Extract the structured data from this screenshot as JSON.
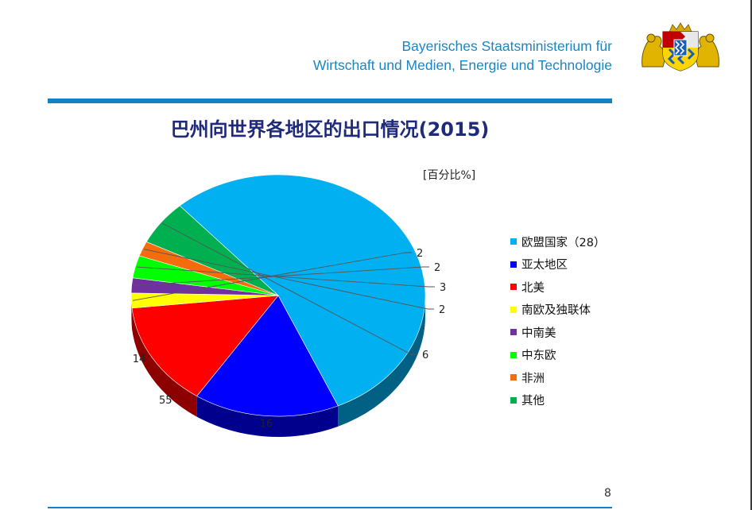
{
  "header": {
    "line1": "Bayerisches Staatsministerium für",
    "line2": "Wirtschaft und Medien, Energie und Technologie"
  },
  "title": "巴州向世界各地区的出口情况(2015)",
  "page_number": "8",
  "chart_data": {
    "type": "pie",
    "title": "巴州向世界各地区的出口情况(2015)",
    "unit": "[百分比%]",
    "legend_position": "right",
    "categories": [
      "欧盟国家（28）",
      "亚太地区",
      "北美",
      "南欧及独联体",
      "中南美",
      "中东欧",
      "非洲",
      "其他"
    ],
    "values": [
      55,
      16,
      14,
      2,
      2,
      3,
      2,
      6
    ],
    "colors": [
      "#00b0f0",
      "#0000ff",
      "#ff0000",
      "#ffff00",
      "#7030a0",
      "#00ff00",
      "#f46c0c",
      "#00b050"
    ],
    "value_labels": [
      "55",
      "16",
      "14",
      "2",
      "2",
      "3",
      "2",
      "6"
    ]
  }
}
